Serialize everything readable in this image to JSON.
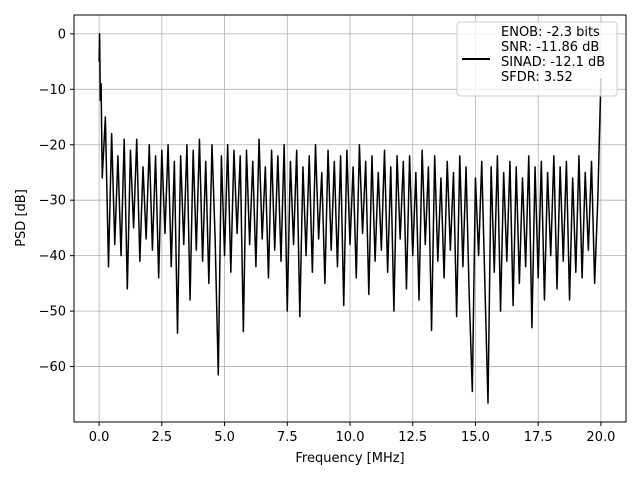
{
  "chart_data": {
    "type": "line",
    "xlabel": "Frequency [MHz]",
    "ylabel": "PSD [dB]",
    "xlim": [
      -1,
      21
    ],
    "ylim": [
      -70,
      3.4
    ],
    "xticks": [
      {
        "value": 0,
        "label": "0.0"
      },
      2.5,
      {
        "value": 5,
        "label": "5.0"
      },
      7.5,
      {
        "value": 10,
        "label": "10.0"
      },
      12.5,
      {
        "value": 15,
        "label": "15.0"
      },
      17.5,
      {
        "value": 20,
        "label": "20.0"
      }
    ],
    "yticks": [
      {
        "value": -60,
        "label": "−60"
      },
      {
        "value": -50,
        "label": "−50"
      },
      {
        "value": -40,
        "label": "−40"
      },
      {
        "value": -30,
        "label": "−30"
      },
      {
        "value": -20,
        "label": "−20"
      },
      {
        "value": -10,
        "label": "−10"
      },
      0
    ],
    "grid": true,
    "legend": "upper right",
    "x": [
      0,
      0.02,
      0.05,
      0.08,
      0.125,
      0.25,
      0.375,
      0.5,
      0.625,
      0.75,
      0.875,
      1,
      1.125,
      1.25,
      1.375,
      1.5,
      1.625,
      1.75,
      1.875,
      2,
      2.125,
      2.25,
      2.375,
      2.5,
      2.625,
      2.75,
      2.875,
      3,
      3.125,
      3.25,
      3.375,
      3.5,
      3.625,
      3.75,
      3.875,
      4,
      4.125,
      4.25,
      4.375,
      4.5,
      4.625,
      4.75,
      4.875,
      5,
      5.125,
      5.25,
      5.375,
      5.5,
      5.625,
      5.75,
      5.875,
      6,
      6.125,
      6.25,
      6.375,
      6.5,
      6.625,
      6.75,
      6.875,
      7,
      7.125,
      7.25,
      7.375,
      7.5,
      7.625,
      7.75,
      7.875,
      8,
      8.125,
      8.25,
      8.375,
      8.5,
      8.625,
      8.75,
      8.875,
      9,
      9.125,
      9.25,
      9.375,
      9.5,
      9.625,
      9.75,
      9.875,
      10,
      10.125,
      10.25,
      10.375,
      10.5,
      10.625,
      10.75,
      10.875,
      11,
      11.125,
      11.25,
      11.375,
      11.5,
      11.625,
      11.75,
      11.875,
      12,
      12.125,
      12.25,
      12.375,
      12.5,
      12.625,
      12.75,
      12.875,
      13,
      13.125,
      13.25,
      13.375,
      13.5,
      13.625,
      13.75,
      13.875,
      14,
      14.125,
      14.25,
      14.375,
      14.5,
      14.625,
      14.75,
      14.875,
      15,
      15.125,
      15.25,
      15.375,
      15.5,
      15.625,
      15.75,
      15.875,
      16,
      16.125,
      16.25,
      16.375,
      16.5,
      16.625,
      16.75,
      16.875,
      17,
      17.125,
      17.25,
      17.375,
      17.5,
      17.625,
      17.75,
      17.875,
      18,
      18.125,
      18.25,
      18.375,
      18.5,
      18.625,
      18.75,
      18.875,
      19,
      19.125,
      19.25,
      19.375,
      19.5,
      19.625,
      19.75,
      19.875,
      20
    ],
    "series": [
      {
        "name": "ENOB: -2.3 bits\nSNR: -11.86 dB\nSINAD: -12.1 dB\nSFDR: 3.52",
        "color": "#000000",
        "values": [
          -5,
          0,
          -12,
          -9,
          -26,
          -15,
          -42,
          -18,
          -38,
          -22,
          -40,
          -19,
          -46,
          -21,
          -35,
          -19,
          -41,
          -24,
          -37,
          -20,
          -39,
          -22,
          -44,
          -21,
          -36,
          -20,
          -42,
          -23,
          -54,
          -22,
          -38,
          -20,
          -48,
          -21,
          -39,
          -19,
          -41,
          -23,
          -45,
          -20,
          -37,
          -61.5,
          -22,
          -40,
          -20,
          -43,
          -21,
          -36,
          -22,
          -53.7,
          -21,
          -38,
          -23,
          -42,
          -19,
          -37,
          -24,
          -44,
          -21,
          -39,
          -22,
          -41,
          -20,
          -50,
          -23,
          -38,
          -21,
          -51,
          -24,
          -40,
          -22,
          -43,
          -20,
          -37,
          -25,
          -45,
          -21,
          -39,
          -23,
          -42,
          -22,
          -49,
          -21,
          -38,
          -24,
          -44,
          -20,
          -36,
          -23,
          -47,
          -22,
          -41,
          -25,
          -39,
          -21,
          -43,
          -24,
          -50,
          -22,
          -37,
          -23,
          -46,
          -22,
          -40,
          -25,
          -48,
          -21,
          -38,
          -24,
          -53.5,
          -22,
          -41,
          -26,
          -44,
          -23,
          -39,
          -25,
          -51,
          -22,
          -42,
          -24,
          -47,
          -64.5,
          -26,
          -40,
          -23,
          -45,
          -66.6,
          -24,
          -43,
          -22,
          -50,
          -25,
          -41,
          -23,
          -49,
          -24,
          -45,
          -26,
          -42,
          -22,
          -53,
          -24,
          -44,
          -23,
          -48,
          -25,
          -40,
          -22,
          -46,
          -24,
          -41,
          -23,
          -48,
          -26,
          -43,
          -22,
          -44,
          -25,
          -39,
          -23,
          -45,
          -30,
          -8
        ]
      }
    ]
  }
}
